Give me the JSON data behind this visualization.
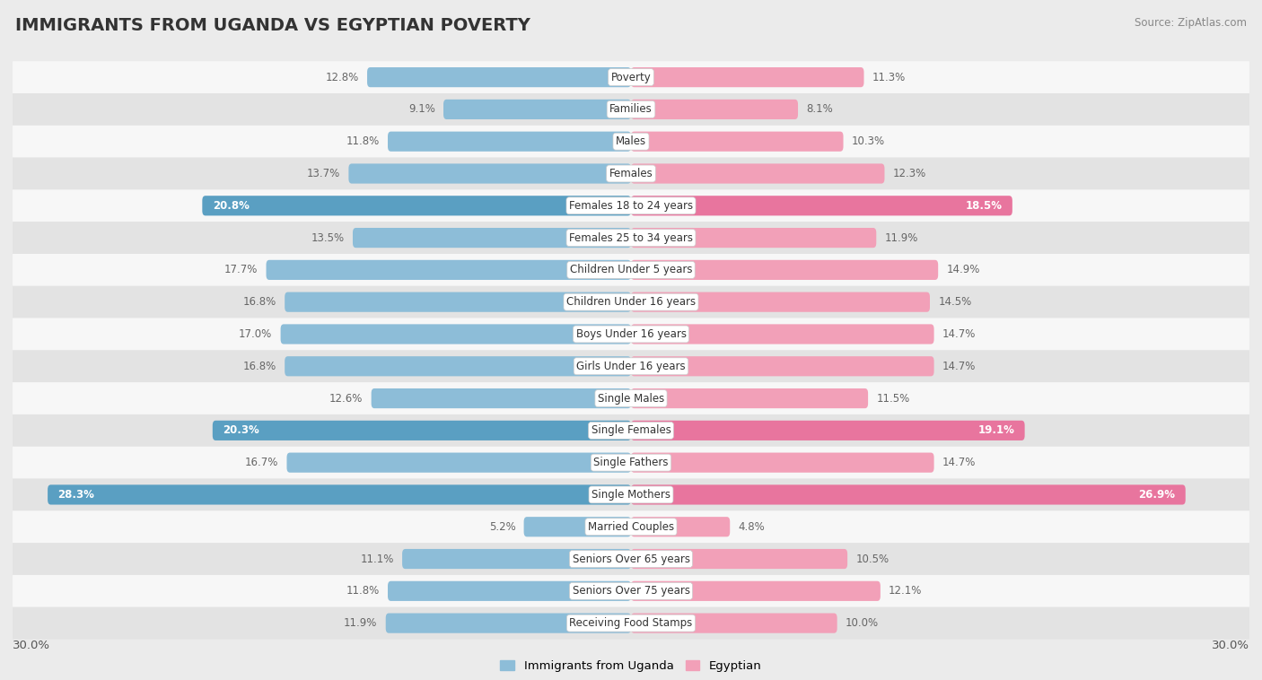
{
  "title": "IMMIGRANTS FROM UGANDA VS EGYPTIAN POVERTY",
  "source": "Source: ZipAtlas.com",
  "categories": [
    "Poverty",
    "Families",
    "Males",
    "Females",
    "Females 18 to 24 years",
    "Females 25 to 34 years",
    "Children Under 5 years",
    "Children Under 16 years",
    "Boys Under 16 years",
    "Girls Under 16 years",
    "Single Males",
    "Single Females",
    "Single Fathers",
    "Single Mothers",
    "Married Couples",
    "Seniors Over 65 years",
    "Seniors Over 75 years",
    "Receiving Food Stamps"
  ],
  "uganda_values": [
    12.8,
    9.1,
    11.8,
    13.7,
    20.8,
    13.5,
    17.7,
    16.8,
    17.0,
    16.8,
    12.6,
    20.3,
    16.7,
    28.3,
    5.2,
    11.1,
    11.8,
    11.9
  ],
  "egyptian_values": [
    11.3,
    8.1,
    10.3,
    12.3,
    18.5,
    11.9,
    14.9,
    14.5,
    14.7,
    14.7,
    11.5,
    19.1,
    14.7,
    26.9,
    4.8,
    10.5,
    12.1,
    10.0
  ],
  "uganda_color": "#8dbdd8",
  "egyptian_color": "#f2a0b8",
  "uganda_highlight_color": "#5a9fc2",
  "egyptian_highlight_color": "#e8759e",
  "highlight_rows": [
    4,
    11,
    13
  ],
  "bar_height": 0.62,
  "bg_color": "#ebebeb",
  "row_bg_even": "#f7f7f7",
  "row_bg_odd": "#e3e3e3",
  "xlim": 30.0,
  "legend_left": "Immigrants from Uganda",
  "legend_right": "Egyptian",
  "label_color": "#666666",
  "category_fontsize": 8.5,
  "value_fontsize": 8.5,
  "title_fontsize": 14
}
